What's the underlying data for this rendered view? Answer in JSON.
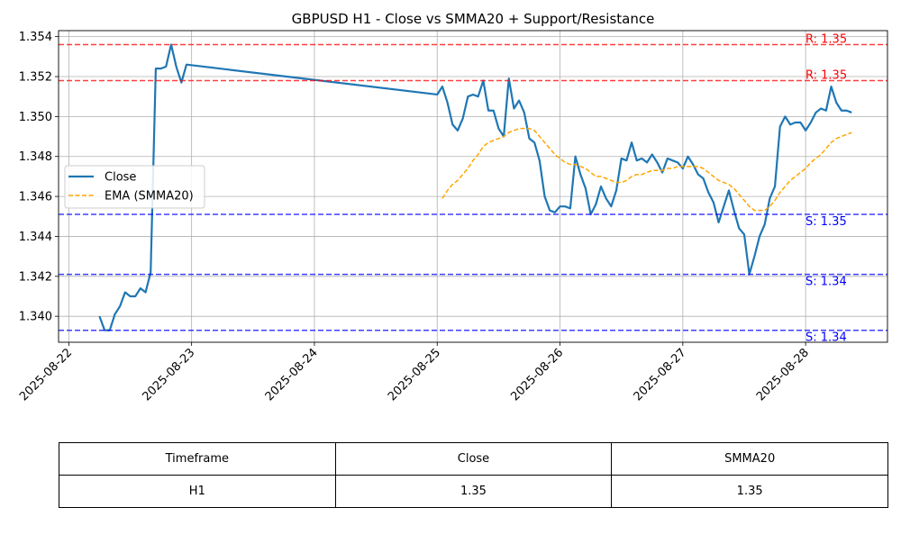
{
  "chart_data": {
    "type": "line",
    "title": "GBPUSD H1 - Close vs SMMA20 + Support/Resistance",
    "xlabel": "",
    "ylabel": "",
    "x_ticks": [
      "2025-08-22",
      "2025-08-23",
      "2025-08-24",
      "2025-08-25",
      "2025-08-26",
      "2025-08-27",
      "2025-08-28"
    ],
    "y_ticks": [
      "1.340",
      "1.342",
      "1.344",
      "1.346",
      "1.348",
      "1.350",
      "1.352",
      "1.354"
    ],
    "xlim": [
      "2025-08-21T22:00",
      "2025-08-28T16:00"
    ],
    "ylim": [
      1.3387,
      1.3543
    ],
    "grid": true,
    "legend_position": "center-left",
    "series": [
      {
        "name": "Close",
        "color": "#1f77b4",
        "style": "solid",
        "points": [
          [
            "2025-08-22T06:00",
            1.34
          ],
          [
            "2025-08-22T07:00",
            1.3393
          ],
          [
            "2025-08-22T08:00",
            1.3393
          ],
          [
            "2025-08-22T09:00",
            1.3401
          ],
          [
            "2025-08-22T10:00",
            1.3405
          ],
          [
            "2025-08-22T11:00",
            1.3412
          ],
          [
            "2025-08-22T12:00",
            1.341
          ],
          [
            "2025-08-22T13:00",
            1.341
          ],
          [
            "2025-08-22T14:00",
            1.3414
          ],
          [
            "2025-08-22T15:00",
            1.3412
          ],
          [
            "2025-08-22T16:00",
            1.3422
          ],
          [
            "2025-08-22T17:00",
            1.3524
          ],
          [
            "2025-08-22T18:00",
            1.3524
          ],
          [
            "2025-08-22T19:00",
            1.3525
          ],
          [
            "2025-08-22T20:00",
            1.3536
          ],
          [
            "2025-08-22T21:00",
            1.3525
          ],
          [
            "2025-08-22T22:00",
            1.3517
          ],
          [
            "2025-08-22T23:00",
            1.3526
          ],
          [
            "2025-08-25T00:00",
            1.3511
          ],
          [
            "2025-08-25T01:00",
            1.3515
          ],
          [
            "2025-08-25T02:00",
            1.3507
          ],
          [
            "2025-08-25T03:00",
            1.3496
          ],
          [
            "2025-08-25T04:00",
            1.3493
          ],
          [
            "2025-08-25T05:00",
            1.3499
          ],
          [
            "2025-08-25T06:00",
            1.351
          ],
          [
            "2025-08-25T07:00",
            1.3511
          ],
          [
            "2025-08-25T08:00",
            1.351
          ],
          [
            "2025-08-25T09:00",
            1.3518
          ],
          [
            "2025-08-25T10:00",
            1.3503
          ],
          [
            "2025-08-25T11:00",
            1.3503
          ],
          [
            "2025-08-25T12:00",
            1.3494
          ],
          [
            "2025-08-25T13:00",
            1.349
          ],
          [
            "2025-08-25T14:00",
            1.3519
          ],
          [
            "2025-08-25T15:00",
            1.3504
          ],
          [
            "2025-08-25T16:00",
            1.3508
          ],
          [
            "2025-08-25T17:00",
            1.3502
          ],
          [
            "2025-08-25T18:00",
            1.3489
          ],
          [
            "2025-08-25T19:00",
            1.3487
          ],
          [
            "2025-08-25T20:00",
            1.3478
          ],
          [
            "2025-08-25T21:00",
            1.346
          ],
          [
            "2025-08-25T22:00",
            1.3453
          ],
          [
            "2025-08-25T23:00",
            1.3452
          ],
          [
            "2025-08-26T00:00",
            1.3455
          ],
          [
            "2025-08-26T01:00",
            1.3455
          ],
          [
            "2025-08-26T02:00",
            1.3454
          ],
          [
            "2025-08-26T03:00",
            1.348
          ],
          [
            "2025-08-26T04:00",
            1.3471
          ],
          [
            "2025-08-26T05:00",
            1.3464
          ],
          [
            "2025-08-26T06:00",
            1.3451
          ],
          [
            "2025-08-26T07:00",
            1.3456
          ],
          [
            "2025-08-26T08:00",
            1.3465
          ],
          [
            "2025-08-26T09:00",
            1.3459
          ],
          [
            "2025-08-26T10:00",
            1.3455
          ],
          [
            "2025-08-26T11:00",
            1.3463
          ],
          [
            "2025-08-26T12:00",
            1.3479
          ],
          [
            "2025-08-26T13:00",
            1.3478
          ],
          [
            "2025-08-26T14:00",
            1.3487
          ],
          [
            "2025-08-26T15:00",
            1.3478
          ],
          [
            "2025-08-26T16:00",
            1.3479
          ],
          [
            "2025-08-26T17:00",
            1.3477
          ],
          [
            "2025-08-26T18:00",
            1.3481
          ],
          [
            "2025-08-26T19:00",
            1.3477
          ],
          [
            "2025-08-26T20:00",
            1.3472
          ],
          [
            "2025-08-26T21:00",
            1.3479
          ],
          [
            "2025-08-26T22:00",
            1.3478
          ],
          [
            "2025-08-26T23:00",
            1.3477
          ],
          [
            "2025-08-27T00:00",
            1.3474
          ],
          [
            "2025-08-27T01:00",
            1.348
          ],
          [
            "2025-08-27T02:00",
            1.3476
          ],
          [
            "2025-08-27T03:00",
            1.3471
          ],
          [
            "2025-08-27T04:00",
            1.3469
          ],
          [
            "2025-08-27T05:00",
            1.3462
          ],
          [
            "2025-08-27T06:00",
            1.3457
          ],
          [
            "2025-08-27T07:00",
            1.3447
          ],
          [
            "2025-08-27T08:00",
            1.3455
          ],
          [
            "2025-08-27T09:00",
            1.3463
          ],
          [
            "2025-08-27T10:00",
            1.3453
          ],
          [
            "2025-08-27T11:00",
            1.3444
          ],
          [
            "2025-08-27T12:00",
            1.3441
          ],
          [
            "2025-08-27T13:00",
            1.3421
          ],
          [
            "2025-08-27T14:00",
            1.343
          ],
          [
            "2025-08-27T15:00",
            1.344
          ],
          [
            "2025-08-27T16:00",
            1.3446
          ],
          [
            "2025-08-27T17:00",
            1.3459
          ],
          [
            "2025-08-27T18:00",
            1.3465
          ],
          [
            "2025-08-27T19:00",
            1.3495
          ],
          [
            "2025-08-27T20:00",
            1.35
          ],
          [
            "2025-08-27T21:00",
            1.3496
          ],
          [
            "2025-08-27T22:00",
            1.3497
          ],
          [
            "2025-08-27T23:00",
            1.3497
          ],
          [
            "2025-08-28T00:00",
            1.3493
          ],
          [
            "2025-08-28T01:00",
            1.3497
          ],
          [
            "2025-08-28T02:00",
            1.3502
          ],
          [
            "2025-08-28T03:00",
            1.3504
          ],
          [
            "2025-08-28T04:00",
            1.3503
          ],
          [
            "2025-08-28T05:00",
            1.3515
          ],
          [
            "2025-08-28T06:00",
            1.3507
          ],
          [
            "2025-08-28T07:00",
            1.3503
          ],
          [
            "2025-08-28T08:00",
            1.3503
          ],
          [
            "2025-08-28T09:00",
            1.3502
          ]
        ]
      },
      {
        "name": "EMA (SMMA20)",
        "color": "#ffa500",
        "style": "dashed",
        "points": [
          [
            "2025-08-25T01:00",
            1.3459
          ],
          [
            "2025-08-25T02:00",
            1.3463
          ],
          [
            "2025-08-25T03:00",
            1.3466
          ],
          [
            "2025-08-25T04:00",
            1.3468
          ],
          [
            "2025-08-25T05:00",
            1.3471
          ],
          [
            "2025-08-25T06:00",
            1.3474
          ],
          [
            "2025-08-25T07:00",
            1.3478
          ],
          [
            "2025-08-25T08:00",
            1.3481
          ],
          [
            "2025-08-25T09:00",
            1.3485
          ],
          [
            "2025-08-25T10:00",
            1.3487
          ],
          [
            "2025-08-25T11:00",
            1.3488
          ],
          [
            "2025-08-25T12:00",
            1.3489
          ],
          [
            "2025-08-25T13:00",
            1.349
          ],
          [
            "2025-08-25T14:00",
            1.3492
          ],
          [
            "2025-08-25T15:00",
            1.3493
          ],
          [
            "2025-08-25T16:00",
            1.3494
          ],
          [
            "2025-08-25T17:00",
            1.3494
          ],
          [
            "2025-08-25T18:00",
            1.3494
          ],
          [
            "2025-08-25T19:00",
            1.3493
          ],
          [
            "2025-08-25T20:00",
            1.349
          ],
          [
            "2025-08-25T21:00",
            1.3487
          ],
          [
            "2025-08-25T22:00",
            1.3484
          ],
          [
            "2025-08-25T23:00",
            1.3481
          ],
          [
            "2025-08-26T00:00",
            1.3479
          ],
          [
            "2025-08-26T01:00",
            1.3477
          ],
          [
            "2025-08-26T02:00",
            1.3476
          ],
          [
            "2025-08-26T03:00",
            1.3476
          ],
          [
            "2025-08-26T04:00",
            1.3475
          ],
          [
            "2025-08-26T05:00",
            1.3474
          ],
          [
            "2025-08-26T06:00",
            1.3472
          ],
          [
            "2025-08-26T07:00",
            1.347
          ],
          [
            "2025-08-26T08:00",
            1.347
          ],
          [
            "2025-08-26T09:00",
            1.3469
          ],
          [
            "2025-08-26T10:00",
            1.3468
          ],
          [
            "2025-08-26T11:00",
            1.3467
          ],
          [
            "2025-08-26T12:00",
            1.3467
          ],
          [
            "2025-08-26T13:00",
            1.3468
          ],
          [
            "2025-08-26T14:00",
            1.347
          ],
          [
            "2025-08-26T15:00",
            1.3471
          ],
          [
            "2025-08-26T16:00",
            1.3471
          ],
          [
            "2025-08-26T17:00",
            1.3472
          ],
          [
            "2025-08-26T18:00",
            1.3473
          ],
          [
            "2025-08-26T19:00",
            1.3473
          ],
          [
            "2025-08-26T20:00",
            1.3473
          ],
          [
            "2025-08-26T21:00",
            1.3474
          ],
          [
            "2025-08-26T22:00",
            1.3474
          ],
          [
            "2025-08-26T23:00",
            1.3475
          ],
          [
            "2025-08-27T00:00",
            1.3475
          ],
          [
            "2025-08-27T01:00",
            1.3475
          ],
          [
            "2025-08-27T02:00",
            1.3475
          ],
          [
            "2025-08-27T03:00",
            1.3475
          ],
          [
            "2025-08-27T04:00",
            1.3474
          ],
          [
            "2025-08-27T05:00",
            1.3472
          ],
          [
            "2025-08-27T06:00",
            1.347
          ],
          [
            "2025-08-27T07:00",
            1.3468
          ],
          [
            "2025-08-27T08:00",
            1.3467
          ],
          [
            "2025-08-27T09:00",
            1.3466
          ],
          [
            "2025-08-27T10:00",
            1.3464
          ],
          [
            "2025-08-27T11:00",
            1.3461
          ],
          [
            "2025-08-27T12:00",
            1.3458
          ],
          [
            "2025-08-27T13:00",
            1.3455
          ],
          [
            "2025-08-27T14:00",
            1.3453
          ],
          [
            "2025-08-27T15:00",
            1.3453
          ],
          [
            "2025-08-27T16:00",
            1.3453
          ],
          [
            "2025-08-27T17:00",
            1.3455
          ],
          [
            "2025-08-27T18:00",
            1.3458
          ],
          [
            "2025-08-27T19:00",
            1.3462
          ],
          [
            "2025-08-27T20:00",
            1.3465
          ],
          [
            "2025-08-27T21:00",
            1.3468
          ],
          [
            "2025-08-27T22:00",
            1.347
          ],
          [
            "2025-08-27T23:00",
            1.3472
          ],
          [
            "2025-08-28T00:00",
            1.3474
          ],
          [
            "2025-08-28T01:00",
            1.3477
          ],
          [
            "2025-08-28T02:00",
            1.3479
          ],
          [
            "2025-08-28T03:00",
            1.3481
          ],
          [
            "2025-08-28T04:00",
            1.3484
          ],
          [
            "2025-08-28T05:00",
            1.3487
          ],
          [
            "2025-08-28T06:00",
            1.3489
          ],
          [
            "2025-08-28T07:00",
            1.349
          ],
          [
            "2025-08-28T08:00",
            1.3491
          ],
          [
            "2025-08-28T09:00",
            1.3492
          ]
        ]
      }
    ],
    "levels": [
      {
        "kind": "resistance",
        "value": 1.3536,
        "label": "R: 1.35",
        "color": "#ff0000"
      },
      {
        "kind": "resistance",
        "value": 1.3518,
        "label": "R: 1.35",
        "color": "#ff0000"
      },
      {
        "kind": "support",
        "value": 1.3451,
        "label": "S: 1.35",
        "color": "#0000ff"
      },
      {
        "kind": "support",
        "value": 1.3421,
        "label": "S: 1.34",
        "color": "#0000ff"
      },
      {
        "kind": "support",
        "value": 1.3393,
        "label": "S: 1.34",
        "color": "#0000ff"
      }
    ]
  },
  "table": {
    "headers": [
      "Timeframe",
      "Close",
      "SMMA20"
    ],
    "rows": [
      [
        "H1",
        "1.35",
        "1.35"
      ]
    ]
  }
}
